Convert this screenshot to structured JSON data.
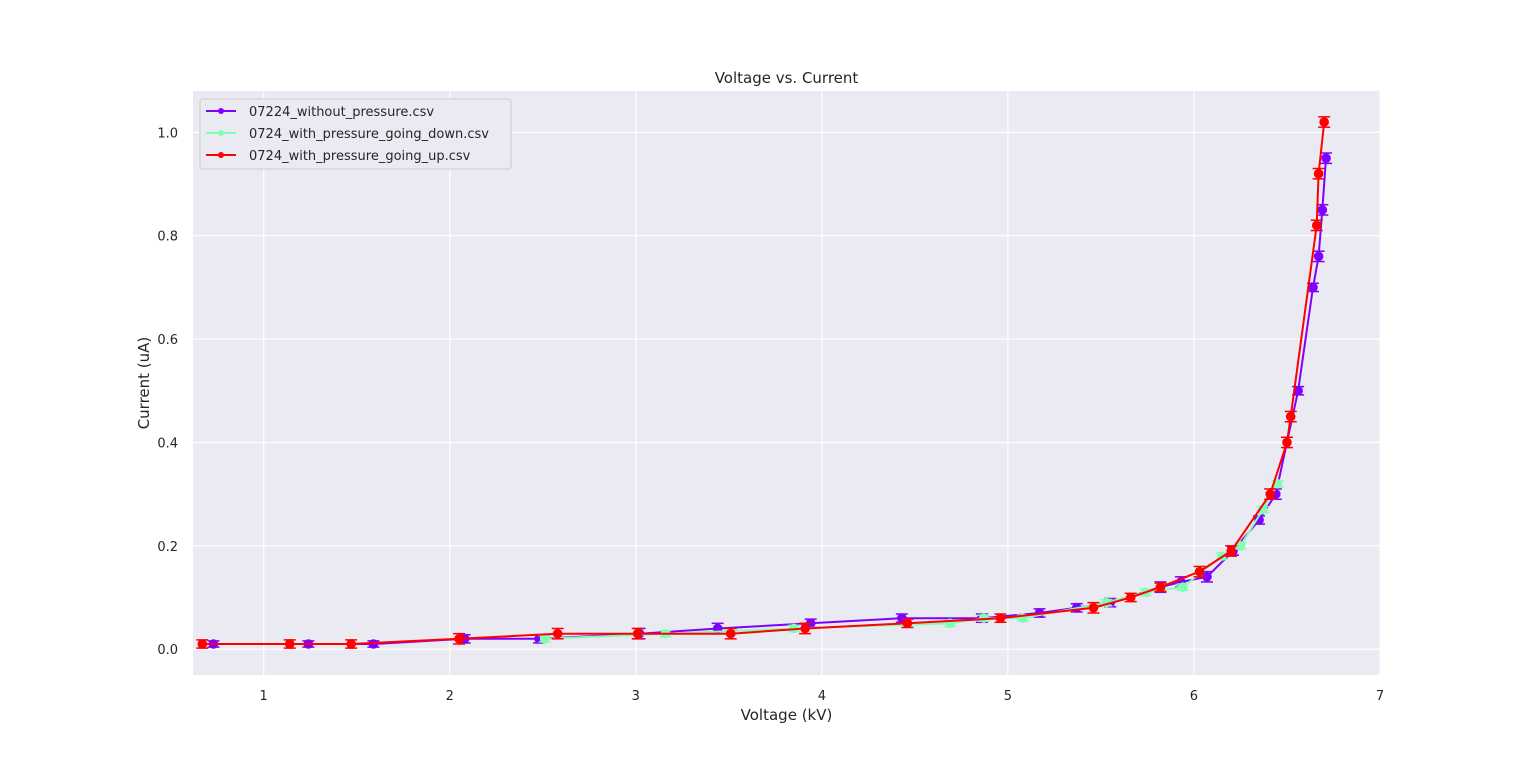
{
  "chart_data": {
    "type": "line",
    "title": "Voltage vs. Current",
    "xlabel": "Voltage (kV)",
    "ylabel": "Current (uA)",
    "xlim": [
      0.62,
      7.0
    ],
    "ylim": [
      -0.05,
      1.08
    ],
    "xticks": [
      1,
      2,
      3,
      4,
      5,
      6,
      7
    ],
    "yticks": [
      0.0,
      0.2,
      0.4,
      0.6,
      0.8,
      1.0
    ],
    "grid": true,
    "legend_position": "top-left",
    "series": [
      {
        "name": "07224_without_pressure.csv",
        "color": "#8000ff",
        "x": [
          0.73,
          1.24,
          1.59,
          2.08,
          2.48,
          3.02,
          3.44,
          3.94,
          4.43,
          4.86,
          5.17,
          5.37,
          5.55,
          5.82,
          5.93,
          6.07,
          6.21,
          6.35,
          6.44,
          6.56,
          6.64,
          6.67,
          6.69,
          6.71
        ],
        "y": [
          0.01,
          0.01,
          0.01,
          0.02,
          0.02,
          0.03,
          0.04,
          0.05,
          0.06,
          0.06,
          0.07,
          0.08,
          0.09,
          0.12,
          0.13,
          0.14,
          0.19,
          0.25,
          0.3,
          0.5,
          0.7,
          0.76,
          0.85,
          0.95
        ],
        "error": [
          0.006,
          0.006,
          0.006,
          0.008,
          0.008,
          0.01,
          0.01,
          0.008,
          0.008,
          0.008,
          0.008,
          0.008,
          0.008,
          0.01,
          0.01,
          0.01,
          0.008,
          0.008,
          0.01,
          0.008,
          0.008,
          0.01,
          0.01,
          0.01
        ]
      },
      {
        "name": "0724_with_pressure_going_down.csv",
        "color": "#80ffb4",
        "x": [
          2.51,
          3.16,
          3.85,
          4.69,
          4.87,
          5.08,
          5.53,
          5.74,
          5.94,
          6.15,
          6.25,
          6.37,
          6.45
        ],
        "y": [
          0.02,
          0.03,
          0.04,
          0.05,
          0.06,
          0.06,
          0.09,
          0.11,
          0.12,
          0.18,
          0.2,
          0.27,
          0.32
        ],
        "error": [
          0.006,
          0.006,
          0.006,
          0.006,
          0.006,
          0.006,
          0.006,
          0.006,
          0.006,
          0.006,
          0.006,
          0.006,
          0.006
        ]
      },
      {
        "name": "0724_with_pressure_going_up.csv",
        "color": "#ff0000",
        "x": [
          0.67,
          1.14,
          1.47,
          2.05,
          2.58,
          3.01,
          3.51,
          3.91,
          4.46,
          4.96,
          5.46,
          5.66,
          5.82,
          6.03,
          6.2,
          6.41,
          6.5,
          6.52,
          6.66,
          6.67,
          6.7
        ],
        "y": [
          0.01,
          0.01,
          0.01,
          0.02,
          0.03,
          0.03,
          0.03,
          0.04,
          0.05,
          0.06,
          0.08,
          0.1,
          0.12,
          0.15,
          0.19,
          0.3,
          0.4,
          0.45,
          0.82,
          0.92,
          1.02
        ],
        "error": [
          0.008,
          0.008,
          0.008,
          0.01,
          0.01,
          0.01,
          0.01,
          0.01,
          0.008,
          0.008,
          0.01,
          0.008,
          0.008,
          0.01,
          0.01,
          0.01,
          0.01,
          0.01,
          0.01,
          0.01,
          0.01
        ]
      }
    ]
  }
}
